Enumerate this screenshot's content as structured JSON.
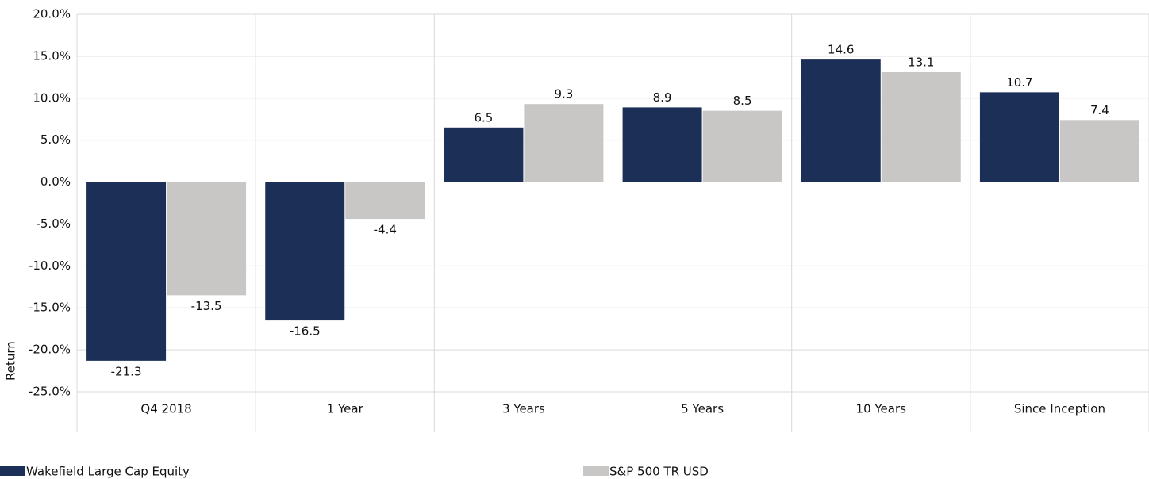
{
  "chart_data": {
    "type": "bar",
    "y_label": "Return",
    "categories": [
      "Q4 2018",
      "1 Year",
      "3 Years",
      "5 Years",
      "10 Years",
      "Since Inception"
    ],
    "series": [
      {
        "name": "Wakefield Large Cap Equity",
        "color": "#1b2f57",
        "values": [
          -21.3,
          -16.5,
          6.5,
          8.9,
          14.6,
          10.7
        ]
      },
      {
        "name": "S&P 500 TR USD",
        "color": "#c8c7c6",
        "values": [
          -13.5,
          -4.4,
          9.3,
          8.5,
          13.1,
          7.4
        ]
      }
    ],
    "ylim": [
      -25,
      20
    ],
    "yticks": [
      {
        "value": 20,
        "label": "20.0%"
      },
      {
        "value": 15,
        "label": "15.0%"
      },
      {
        "value": 10,
        "label": "10.0%"
      },
      {
        "value": 5,
        "label": "5.0%"
      },
      {
        "value": 0,
        "label": "0.0%"
      },
      {
        "value": -5,
        "label": "-5.0%"
      },
      {
        "value": -10,
        "label": "-10.0%"
      },
      {
        "value": -15,
        "label": "-15.0%"
      },
      {
        "value": -20,
        "label": "-20.0%"
      },
      {
        "value": -25,
        "label": "-25.0%"
      }
    ],
    "grid": true,
    "data_labels": true,
    "legend": "bottom"
  }
}
